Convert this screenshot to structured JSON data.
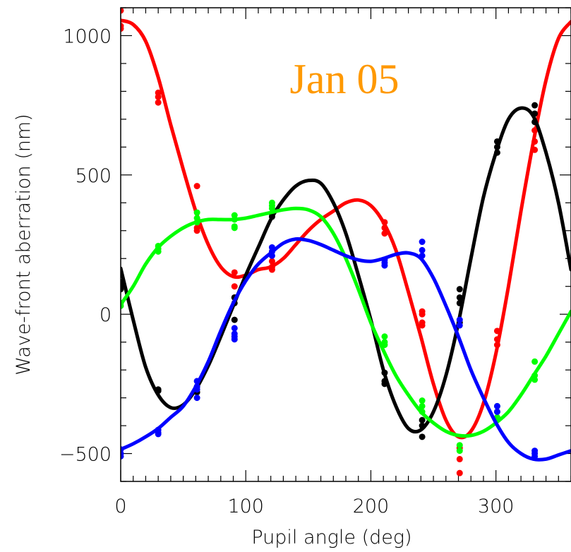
{
  "chart_data": {
    "type": "line",
    "title": "",
    "annotation": "Jan 05",
    "annotation_color": "#ff9900",
    "xlabel": "Pupil angle (deg)",
    "ylabel": "Wave-front aberration (nm)",
    "xlim": [
      0,
      360
    ],
    "ylim": [
      -600,
      1100
    ],
    "x_ticks": [
      0,
      100,
      200,
      300
    ],
    "y_ticks": [
      -500,
      0,
      500,
      1000
    ],
    "x_tick_labels": [
      "0",
      "100",
      "200",
      "300"
    ],
    "y_tick_labels": [
      "−500",
      "0",
      "500",
      "1000"
    ],
    "grid": false,
    "legend": "none",
    "series": [
      {
        "color": "#ff0000",
        "curve": [
          [
            0,
            1055
          ],
          [
            10,
            1040
          ],
          [
            20,
            980
          ],
          [
            30,
            850
          ],
          [
            40,
            680
          ],
          [
            50,
            520
          ],
          [
            60,
            370
          ],
          [
            70,
            250
          ],
          [
            80,
            170
          ],
          [
            90,
            135
          ],
          [
            100,
            140
          ],
          [
            110,
            160
          ],
          [
            120,
            170
          ],
          [
            130,
            200
          ],
          [
            140,
            250
          ],
          [
            150,
            300
          ],
          [
            160,
            340
          ],
          [
            170,
            370
          ],
          [
            180,
            400
          ],
          [
            190,
            410
          ],
          [
            200,
            390
          ],
          [
            210,
            330
          ],
          [
            220,
            230
          ],
          [
            230,
            80
          ],
          [
            240,
            -80
          ],
          [
            250,
            -250
          ],
          [
            260,
            -380
          ],
          [
            270,
            -440
          ],
          [
            280,
            -420
          ],
          [
            290,
            -320
          ],
          [
            300,
            -140
          ],
          [
            310,
            100
          ],
          [
            320,
            370
          ],
          [
            330,
            620
          ],
          [
            340,
            840
          ],
          [
            350,
            990
          ],
          [
            360,
            1050
          ]
        ],
        "points": [
          [
            0,
            1090
          ],
          [
            0,
            1035
          ],
          [
            0,
            1025
          ],
          [
            30,
            795
          ],
          [
            30,
            780
          ],
          [
            30,
            760
          ],
          [
            61,
            460
          ],
          [
            61,
            310
          ],
          [
            61,
            300
          ],
          [
            91,
            150
          ],
          [
            91,
            100
          ],
          [
            91,
            60
          ],
          [
            121,
            190
          ],
          [
            121,
            170
          ],
          [
            121,
            160
          ],
          [
            211,
            330
          ],
          [
            211,
            310
          ],
          [
            211,
            290
          ],
          [
            241,
            10
          ],
          [
            241,
            0
          ],
          [
            241,
            -30
          ],
          [
            241,
            -40
          ],
          [
            271,
            -480
          ],
          [
            271,
            -520
          ],
          [
            271,
            -570
          ],
          [
            301,
            -60
          ],
          [
            301,
            -90
          ],
          [
            301,
            -110
          ],
          [
            331,
            660
          ],
          [
            331,
            620
          ],
          [
            331,
            590
          ]
        ]
      },
      {
        "color": "#000000",
        "curve": [
          [
            0,
            165
          ],
          [
            10,
            -20
          ],
          [
            20,
            -190
          ],
          [
            30,
            -290
          ],
          [
            40,
            -335
          ],
          [
            50,
            -325
          ],
          [
            60,
            -270
          ],
          [
            70,
            -185
          ],
          [
            80,
            -80
          ],
          [
            90,
            30
          ],
          [
            100,
            140
          ],
          [
            110,
            240
          ],
          [
            120,
            340
          ],
          [
            130,
            410
          ],
          [
            140,
            460
          ],
          [
            150,
            480
          ],
          [
            160,
            470
          ],
          [
            170,
            400
          ],
          [
            180,
            290
          ],
          [
            190,
            140
          ],
          [
            200,
            -20
          ],
          [
            210,
            -200
          ],
          [
            220,
            -330
          ],
          [
            230,
            -410
          ],
          [
            240,
            -415
          ],
          [
            250,
            -350
          ],
          [
            260,
            -220
          ],
          [
            270,
            -30
          ],
          [
            280,
            200
          ],
          [
            290,
            420
          ],
          [
            300,
            580
          ],
          [
            310,
            700
          ],
          [
            320,
            740
          ],
          [
            330,
            710
          ],
          [
            340,
            580
          ],
          [
            350,
            400
          ],
          [
            360,
            160
          ]
        ],
        "points": [
          [
            0,
            115
          ],
          [
            0,
            100
          ],
          [
            0,
            90
          ],
          [
            30,
            -270
          ],
          [
            30,
            -275
          ],
          [
            61,
            -260
          ],
          [
            61,
            -280
          ],
          [
            91,
            60
          ],
          [
            91,
            40
          ],
          [
            91,
            -20
          ],
          [
            121,
            360
          ],
          [
            121,
            350
          ],
          [
            211,
            -210
          ],
          [
            211,
            -240
          ],
          [
            211,
            -250
          ],
          [
            241,
            -380
          ],
          [
            241,
            -400
          ],
          [
            241,
            -440
          ],
          [
            271,
            90
          ],
          [
            271,
            60
          ],
          [
            271,
            40
          ],
          [
            271,
            -30
          ],
          [
            301,
            620
          ],
          [
            301,
            600
          ],
          [
            301,
            580
          ],
          [
            331,
            750
          ],
          [
            331,
            720
          ],
          [
            331,
            690
          ]
        ]
      },
      {
        "color": "#00ff00",
        "curve": [
          [
            0,
            35
          ],
          [
            10,
            100
          ],
          [
            20,
            180
          ],
          [
            30,
            240
          ],
          [
            40,
            280
          ],
          [
            50,
            310
          ],
          [
            60,
            330
          ],
          [
            70,
            340
          ],
          [
            80,
            340
          ],
          [
            90,
            340
          ],
          [
            100,
            345
          ],
          [
            110,
            355
          ],
          [
            120,
            365
          ],
          [
            130,
            375
          ],
          [
            140,
            380
          ],
          [
            150,
            375
          ],
          [
            160,
            350
          ],
          [
            170,
            290
          ],
          [
            180,
            200
          ],
          [
            190,
            90
          ],
          [
            200,
            -30
          ],
          [
            210,
            -130
          ],
          [
            220,
            -220
          ],
          [
            230,
            -290
          ],
          [
            240,
            -350
          ],
          [
            250,
            -390
          ],
          [
            260,
            -420
          ],
          [
            270,
            -435
          ],
          [
            280,
            -435
          ],
          [
            290,
            -420
          ],
          [
            300,
            -390
          ],
          [
            310,
            -350
          ],
          [
            320,
            -290
          ],
          [
            330,
            -220
          ],
          [
            340,
            -150
          ],
          [
            350,
            -70
          ],
          [
            360,
            10
          ]
        ],
        "points": [
          [
            0,
            40
          ],
          [
            0,
            30
          ],
          [
            30,
            245
          ],
          [
            30,
            235
          ],
          [
            30,
            225
          ],
          [
            61,
            365
          ],
          [
            61,
            345
          ],
          [
            61,
            330
          ],
          [
            91,
            355
          ],
          [
            91,
            340
          ],
          [
            91,
            315
          ],
          [
            91,
            310
          ],
          [
            121,
            400
          ],
          [
            121,
            390
          ],
          [
            121,
            380
          ],
          [
            211,
            -80
          ],
          [
            211,
            -100
          ],
          [
            211,
            -110
          ],
          [
            241,
            -310
          ],
          [
            241,
            -330
          ],
          [
            241,
            -350
          ],
          [
            271,
            -470
          ],
          [
            271,
            -490
          ],
          [
            301,
            -330
          ],
          [
            301,
            -350
          ],
          [
            301,
            -370
          ],
          [
            331,
            -170
          ],
          [
            331,
            -220
          ],
          [
            331,
            -235
          ]
        ]
      },
      {
        "color": "#0000ff",
        "curve": [
          [
            0,
            -485
          ],
          [
            10,
            -465
          ],
          [
            20,
            -440
          ],
          [
            30,
            -410
          ],
          [
            40,
            -370
          ],
          [
            50,
            -330
          ],
          [
            60,
            -260
          ],
          [
            70,
            -170
          ],
          [
            80,
            -60
          ],
          [
            90,
            40
          ],
          [
            100,
            120
          ],
          [
            110,
            180
          ],
          [
            120,
            220
          ],
          [
            130,
            255
          ],
          [
            140,
            270
          ],
          [
            150,
            265
          ],
          [
            160,
            250
          ],
          [
            170,
            230
          ],
          [
            180,
            210
          ],
          [
            190,
            195
          ],
          [
            200,
            190
          ],
          [
            210,
            200
          ],
          [
            220,
            215
          ],
          [
            230,
            220
          ],
          [
            240,
            200
          ],
          [
            250,
            130
          ],
          [
            260,
            30
          ],
          [
            270,
            -80
          ],
          [
            280,
            -200
          ],
          [
            290,
            -300
          ],
          [
            300,
            -390
          ],
          [
            310,
            -460
          ],
          [
            320,
            -500
          ],
          [
            330,
            -520
          ],
          [
            340,
            -520
          ],
          [
            350,
            -505
          ],
          [
            360,
            -490
          ]
        ],
        "points": [
          [
            0,
            -485
          ],
          [
            0,
            -500
          ],
          [
            0,
            -510
          ],
          [
            30,
            -415
          ],
          [
            30,
            -425
          ],
          [
            30,
            -430
          ],
          [
            61,
            -240
          ],
          [
            61,
            -260
          ],
          [
            61,
            -270
          ],
          [
            61,
            -300
          ],
          [
            91,
            -50
          ],
          [
            91,
            -70
          ],
          [
            91,
            -80
          ],
          [
            91,
            -90
          ],
          [
            121,
            240
          ],
          [
            121,
            225
          ],
          [
            121,
            210
          ],
          [
            211,
            195
          ],
          [
            211,
            185
          ],
          [
            211,
            175
          ],
          [
            241,
            260
          ],
          [
            241,
            230
          ],
          [
            241,
            210
          ],
          [
            271,
            -20
          ],
          [
            271,
            -40
          ],
          [
            301,
            -330
          ],
          [
            301,
            -350
          ],
          [
            331,
            -490
          ],
          [
            331,
            -500
          ],
          [
            331,
            -510
          ]
        ]
      }
    ]
  }
}
